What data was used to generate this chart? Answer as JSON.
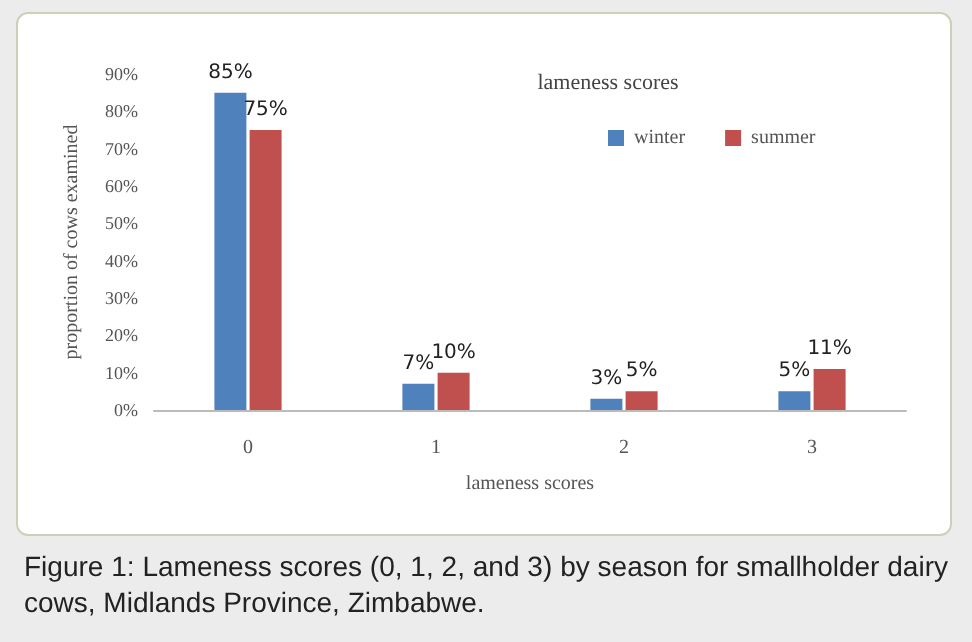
{
  "chart_data": {
    "type": "bar",
    "title": "lameness scores",
    "xlabel": "lameness scores",
    "ylabel": "proportion of cows examined",
    "categories": [
      "0",
      "1",
      "2",
      "3"
    ],
    "series": [
      {
        "name": "winter",
        "color": "#4f81bd",
        "values": [
          85,
          7,
          3,
          5
        ],
        "value_labels": [
          "85%",
          "7%",
          "3%",
          "5%"
        ]
      },
      {
        "name": "summer",
        "color": "#c0504d",
        "values": [
          75,
          10,
          5,
          11
        ],
        "value_labels": [
          "75%",
          "10%",
          "5%",
          "11%"
        ]
      }
    ],
    "ylim": [
      0,
      90
    ],
    "yticks": [
      {
        "value": 0,
        "label": "0%"
      },
      {
        "value": 10,
        "label": "10%"
      },
      {
        "value": 20,
        "label": "20%"
      },
      {
        "value": 30,
        "label": "30%"
      },
      {
        "value": 40,
        "label": "40%"
      },
      {
        "value": 50,
        "label": "50%"
      },
      {
        "value": 60,
        "label": "60%"
      },
      {
        "value": 70,
        "label": "70%"
      },
      {
        "value": 80,
        "label": "80%"
      },
      {
        "value": 90,
        "label": "90%"
      }
    ],
    "grid": false,
    "legend": "top",
    "annotations": [
      "Figure 1: Lameness scores (0, 1, 2, and 3) by season for smallholder dairy cows, Midlands Province, Zimbabwe."
    ]
  }
}
